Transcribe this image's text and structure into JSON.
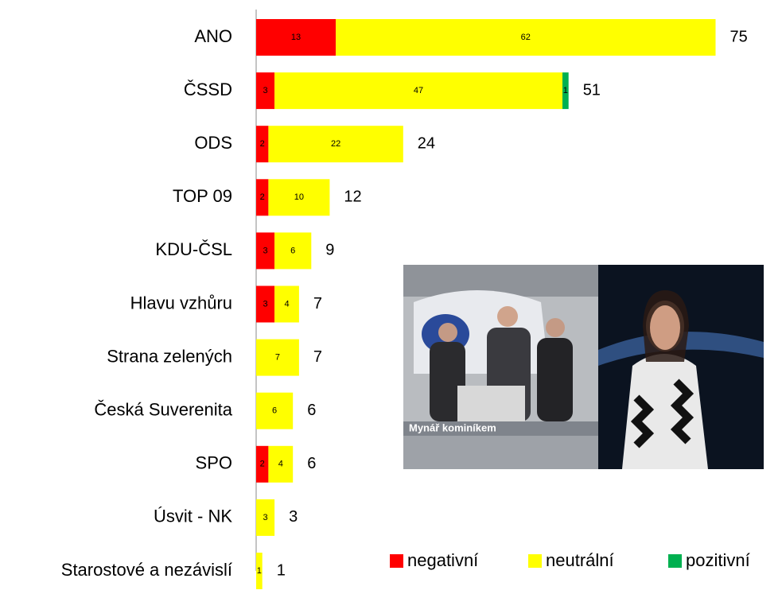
{
  "chart_data": {
    "type": "stacked-bar-horizontal",
    "categories": [
      "ANO",
      "ČSSD",
      "ODS",
      "TOP 09",
      "KDU-ČSL",
      "Hlavu vzhůru",
      "Strana zelených",
      "Česká Suverenita",
      "SPO",
      "Úsvit - NK",
      "Starostové a nezávislí"
    ],
    "series": [
      {
        "name": "negativní",
        "color": "#ff0000",
        "values": [
          13,
          3,
          2,
          2,
          3,
          3,
          null,
          null,
          2,
          null,
          null
        ]
      },
      {
        "name": "neutrální",
        "color": "#ffff00",
        "values": [
          62,
          47,
          22,
          10,
          6,
          4,
          7,
          6,
          4,
          3,
          1
        ]
      },
      {
        "name": "pozitivní",
        "color": "#00b050",
        "values": [
          null,
          1,
          null,
          null,
          null,
          null,
          null,
          null,
          null,
          null,
          null
        ]
      }
    ],
    "totals": [
      75,
      51,
      24,
      12,
      9,
      7,
      7,
      6,
      6,
      3,
      1
    ],
    "xlim": [
      0,
      80
    ],
    "legend": "bottom-right"
  },
  "inset": {
    "caption": "Mynář kominíkem"
  }
}
